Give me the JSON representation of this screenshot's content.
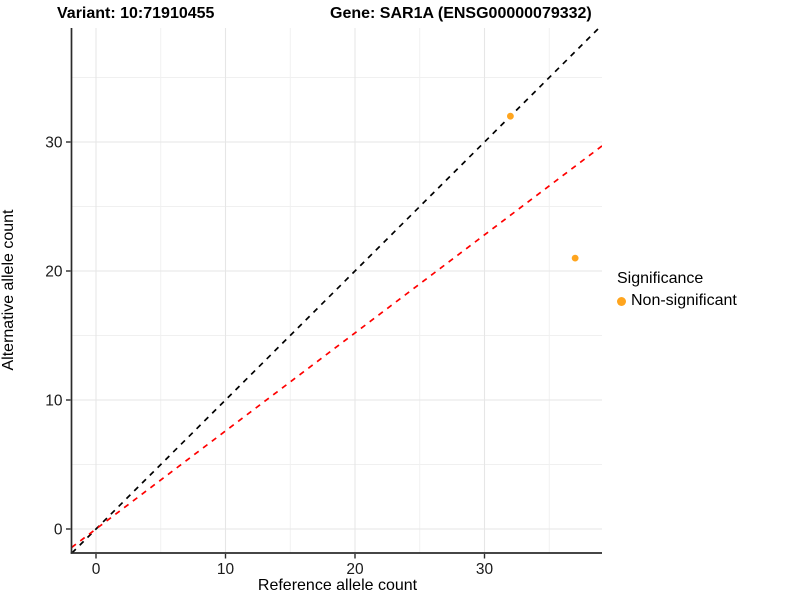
{
  "title": {
    "variant": "Variant: 10:71910455",
    "gene": "Gene: SAR1A (ENSG00000079332)"
  },
  "axes": {
    "x": {
      "label": "Reference allele count",
      "tick_labels": [
        "0",
        "10",
        "20",
        "30"
      ]
    },
    "y": {
      "label": "Alternative allele count",
      "tick_labels": [
        "0",
        "10",
        "20",
        "30"
      ]
    }
  },
  "legend": {
    "title": "Significance",
    "items": [
      {
        "label": "Non-significant",
        "color": "#FFA51E"
      }
    ]
  },
  "chart_data": {
    "type": "scatter",
    "title": "Variant: 10:71910455 — Gene: SAR1A (ENSG00000079332)",
    "xlabel": "Reference allele count",
    "ylabel": "Alternative allele count",
    "xlim": [
      -1.9,
      39.1
    ],
    "ylim": [
      -1.9,
      38.8
    ],
    "x_major_ticks": [
      0,
      10,
      20,
      30
    ],
    "x_minor_gridlines": [
      5,
      15,
      25,
      35
    ],
    "y_major_ticks": [
      0,
      10,
      20,
      30
    ],
    "y_minor_gridlines": [
      5,
      15,
      25,
      35
    ],
    "grid": true,
    "legend_position": "right",
    "series": [
      {
        "name": "Non-significant",
        "color": "#FFA51E",
        "points": [
          {
            "x": 32,
            "y": 32
          },
          {
            "x": 37,
            "y": 21
          }
        ]
      }
    ],
    "reference_lines": [
      {
        "name": "identity-line",
        "slope": 1,
        "intercept": 0,
        "style": "dashed",
        "color": "#000000"
      },
      {
        "name": "expected-ratio-line",
        "slope": 0.76,
        "intercept": 0,
        "style": "dashed",
        "color": "#FF0000"
      }
    ]
  },
  "colors": {
    "background": "#FFFFFF",
    "major_gridline": "#E6E6E6",
    "minor_gridline": "#F0F0F0",
    "axis_line": "#2B2B2B",
    "tick_label": "#1A1A1A"
  }
}
